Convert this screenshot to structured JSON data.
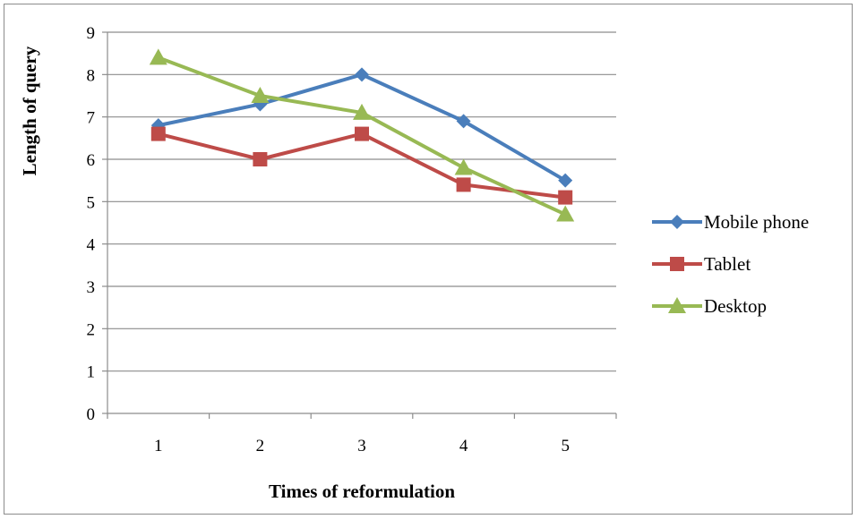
{
  "chart_data": {
    "type": "line",
    "title": "",
    "xlabel": "Times of reformulation",
    "ylabel": "Length of query",
    "categories": [
      "1",
      "2",
      "3",
      "4",
      "5"
    ],
    "ylim": [
      0,
      9
    ],
    "yticks": [
      "0",
      "1",
      "2",
      "3",
      "4",
      "5",
      "6",
      "7",
      "8",
      "9"
    ],
    "grid": "horizontal",
    "legend_position": "right",
    "series": [
      {
        "name": "Mobile phone",
        "values": [
          6.8,
          7.3,
          8.0,
          6.9,
          5.5
        ],
        "color": "#4a7ebb",
        "marker": "diamond"
      },
      {
        "name": "Tablet",
        "values": [
          6.6,
          6.0,
          6.6,
          5.4,
          5.1
        ],
        "color": "#be4b48",
        "marker": "square"
      },
      {
        "name": "Desktop",
        "values": [
          8.4,
          7.5,
          7.1,
          5.8,
          4.7
        ],
        "color": "#98b954",
        "marker": "triangle"
      }
    ]
  }
}
